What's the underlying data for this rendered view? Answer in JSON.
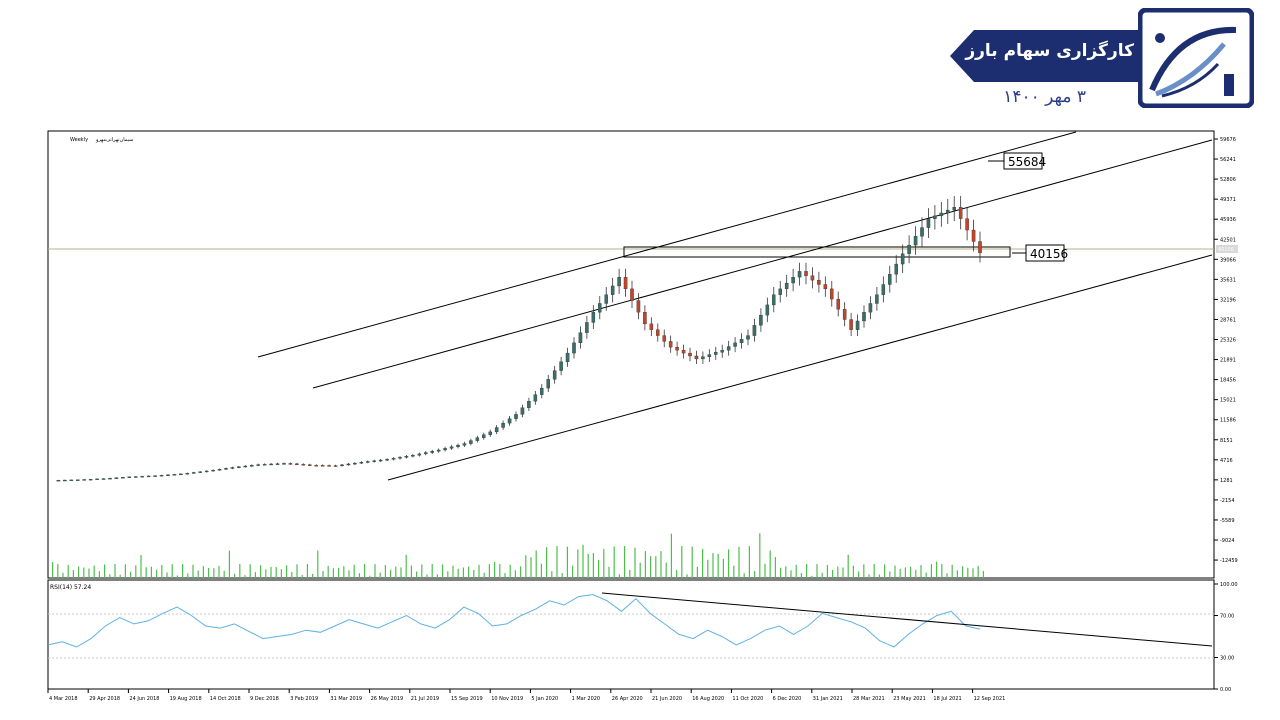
{
  "header": {
    "brand_title": "کارگزاری سهام بارز",
    "date": "۳ مهر ۱۴۰۰"
  },
  "colors": {
    "brand_navy": "#1c2e6f",
    "bull": "#3b6e68",
    "bear": "#c0452b",
    "volume": "#4dbf4d",
    "rsi": "#5fb0e6"
  },
  "icons": {
    "logo": "logo-swoosh-icon"
  },
  "chart_data": [
    {
      "type": "candlestick",
      "symbol_label": "سیمان‌تهرانی‌مهرو",
      "timeframe": "Weekly",
      "price_axis_ticks": [
        59676,
        56241,
        52806,
        49371,
        45936,
        42501,
        39066,
        35631,
        32196,
        28761,
        25326,
        21891,
        18456,
        15021,
        11586,
        8151,
        4716,
        1281,
        -2154,
        -5589,
        -9024,
        -12459
      ],
      "current_price_label": "40156",
      "annotations": [
        {
          "text": "55684",
          "type": "target-level"
        },
        {
          "text": "40156",
          "type": "resistance-level"
        }
      ],
      "x_labels": [
        "4 Mar 2018",
        "29 Apr 2018",
        "24 Jun 2018",
        "19 Aug 2018",
        "14 Oct 2018",
        "9 Dec 2018",
        "3 Feb 2019",
        "31 Mar 2019",
        "26 May 2019",
        "21 Jul 2019",
        "15 Sep 2019",
        "10 Nov 2019",
        "5 Jan 2020",
        "1 Mar 2020",
        "26 Apr 2020",
        "21 Jun 2020",
        "16 Aug 2020",
        "11 Oct 2020",
        "6 Dec 2020",
        "31 Jan 2021",
        "28 Mar 2021",
        "23 May 2021",
        "18 Jul 2021",
        "12 Sep 2021"
      ],
      "close_approx": [
        1200,
        1300,
        1500,
        1800,
        2000,
        2300,
        2800,
        3400,
        3900,
        4100,
        3800,
        3700,
        4300,
        4800,
        5500,
        6400,
        7500,
        9500,
        12500,
        17000,
        23000,
        30000,
        36000,
        28000,
        24000,
        22000,
        23500,
        26000,
        33000,
        37000,
        34000,
        27000,
        33000,
        40000,
        46000,
        48000,
        40156
      ],
      "volume_spikes": "weekly volume histogram, peaks around mid-2020 and Jan 2021",
      "ylim": [
        -12459,
        59676
      ],
      "trend_channels": "two parallel rising channels with lower support line",
      "grid": false
    },
    {
      "type": "line",
      "label": "RSI(14) 57.24",
      "rsi_axis_ticks": [
        100.0,
        70.0,
        30.0,
        0.0
      ],
      "reference_levels": [
        70,
        30
      ],
      "ylim": [
        0,
        100
      ],
      "trendline": "descending from 2020 peak"
    }
  ]
}
